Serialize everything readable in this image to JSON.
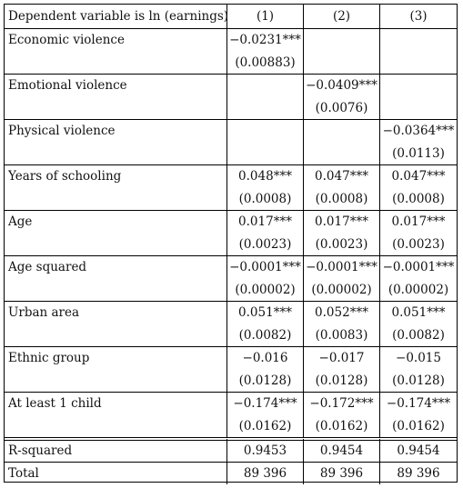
{
  "header": {
    "label": "Dependent variable is ln (earnings)",
    "col1": "(1)",
    "col2": "(2)",
    "col3": "(3)"
  },
  "variables": [
    {
      "name": "Economic violence",
      "coef": [
        "−0.0231***",
        "",
        ""
      ],
      "se": [
        "(0.00883)",
        "",
        ""
      ]
    },
    {
      "name": "Emotional violence",
      "coef": [
        "",
        "−0.0409***",
        ""
      ],
      "se": [
        "",
        "(0.0076)",
        ""
      ]
    },
    {
      "name": "Physical violence",
      "coef": [
        "",
        "",
        "−0.0364***"
      ],
      "se": [
        "",
        "",
        "(0.0113)"
      ]
    },
    {
      "name": "Years of schooling",
      "coef": [
        "0.048***",
        "0.047***",
        "0.047***"
      ],
      "se": [
        "(0.0008)",
        "(0.0008)",
        "(0.0008)"
      ]
    },
    {
      "name": "Age",
      "coef": [
        "0.017***",
        "0.017***",
        "0.017***"
      ],
      "se": [
        "(0.0023)",
        "(0.0023)",
        "(0.0023)"
      ]
    },
    {
      "name": "Age squared",
      "coef": [
        "−0.0001***",
        "−0.0001***",
        "−0.0001***"
      ],
      "se": [
        "(0.00002)",
        "(0.00002)",
        "(0.00002)"
      ]
    },
    {
      "name": "Urban area",
      "coef": [
        "0.051***",
        "0.052***",
        "0.051***"
      ],
      "se": [
        "(0.0082)",
        "(0.0083)",
        "(0.0082)"
      ]
    },
    {
      "name": "Ethnic group",
      "coef": [
        "−0.016",
        "−0.017",
        "−0.015"
      ],
      "se": [
        "(0.0128)",
        "(0.0128)",
        "(0.0128)"
      ]
    },
    {
      "name": "At least 1 child",
      "coef": [
        "−0.174***",
        "−0.172***",
        "−0.174***"
      ],
      "se": [
        "(0.0162)",
        "(0.0162)",
        "(0.0162)"
      ]
    }
  ],
  "footer": [
    {
      "name": "R-squared",
      "values": [
        "0.9453",
        "0.9454",
        "0.9454"
      ]
    },
    {
      "name": "Total",
      "values": [
        "89 396",
        "89 396",
        "89 396"
      ]
    }
  ]
}
